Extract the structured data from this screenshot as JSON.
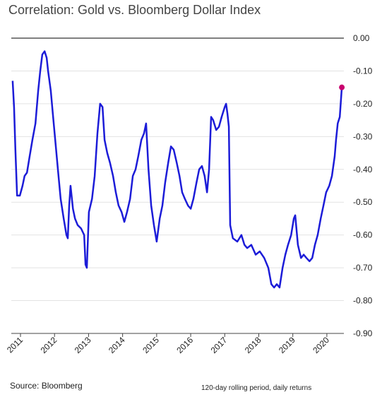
{
  "chart_data": {
    "type": "line",
    "title": "Correlation: Gold vs. Bloomberg Dollar Index",
    "source": "Source: Bloomberg",
    "note": "120-day rolling period,  daily returns",
    "color": "#1c1cd8",
    "grid": true,
    "xlim": [
      2010.73,
      2020.5
    ],
    "xticks": [
      2011,
      2012,
      2013,
      2014,
      2015,
      2016,
      2017,
      2018,
      2019,
      2020
    ],
    "ylim": [
      -0.9,
      0
    ],
    "yticks": [
      {
        "value": 0,
        "label": "0.00"
      },
      {
        "value": -0.1,
        "label": "-0.10"
      },
      {
        "value": -0.2,
        "label": "-0.20"
      },
      {
        "value": -0.3,
        "label": "-0.30"
      },
      {
        "value": -0.4,
        "label": "-0.40"
      },
      {
        "value": -0.5,
        "label": "-0.50"
      },
      {
        "value": -0.6,
        "label": "-0.60"
      },
      {
        "value": -0.7,
        "label": "-0.70"
      },
      {
        "value": -0.8,
        "label": "-0.80"
      },
      {
        "value": -0.9,
        "label": "-0.90"
      }
    ],
    "x": [
      2010.77,
      2010.81,
      2010.85,
      2010.9,
      2010.98,
      2011.06,
      2011.12,
      2011.19,
      2011.27,
      2011.35,
      2011.44,
      2011.52,
      2011.58,
      2011.64,
      2011.71,
      2011.77,
      2011.81,
      2011.89,
      2011.95,
      2012.02,
      2012.1,
      2012.18,
      2012.27,
      2012.35,
      2012.39,
      2012.43,
      2012.47,
      2012.54,
      2012.6,
      2012.68,
      2012.78,
      2012.87,
      2012.91,
      2012.95,
      2013.01,
      2013.1,
      2013.18,
      2013.26,
      2013.34,
      2013.41,
      2013.47,
      2013.55,
      2013.63,
      2013.72,
      2013.8,
      2013.88,
      2013.97,
      2014.05,
      2014.13,
      2014.22,
      2014.3,
      2014.38,
      2014.46,
      2014.55,
      2014.63,
      2014.69,
      2014.76,
      2014.84,
      2014.92,
      2015.0,
      2015.09,
      2015.17,
      2015.25,
      2015.34,
      2015.42,
      2015.5,
      2015.59,
      2015.67,
      2015.75,
      2015.83,
      2015.92,
      2016.0,
      2016.08,
      2016.17,
      2016.25,
      2016.33,
      2016.41,
      2016.48,
      2016.54,
      2016.6,
      2016.66,
      2016.75,
      2016.83,
      2016.91,
      2017.0,
      2017.04,
      2017.08,
      2017.12,
      2017.16,
      2017.24,
      2017.37,
      2017.49,
      2017.58,
      2017.66,
      2017.78,
      2017.91,
      2018.03,
      2018.16,
      2018.28,
      2018.37,
      2018.45,
      2018.53,
      2018.61,
      2018.7,
      2018.78,
      2018.86,
      2018.95,
      2019.03,
      2019.07,
      2019.15,
      2019.24,
      2019.32,
      2019.4,
      2019.49,
      2019.57,
      2019.65,
      2019.73,
      2019.82,
      2019.9,
      2019.98,
      2020.07,
      2020.15,
      2020.23,
      2020.27,
      2020.32,
      2020.38,
      2020.44
    ],
    "values": [
      -0.13,
      -0.21,
      -0.34,
      -0.48,
      -0.48,
      -0.45,
      -0.42,
      -0.41,
      -0.36,
      -0.31,
      -0.26,
      -0.16,
      -0.1,
      -0.05,
      -0.04,
      -0.06,
      -0.1,
      -0.16,
      -0.23,
      -0.31,
      -0.4,
      -0.49,
      -0.55,
      -0.6,
      -0.61,
      -0.51,
      -0.45,
      -0.52,
      -0.55,
      -0.57,
      -0.58,
      -0.6,
      -0.69,
      -0.7,
      -0.53,
      -0.49,
      -0.42,
      -0.29,
      -0.2,
      -0.21,
      -0.31,
      -0.35,
      -0.38,
      -0.42,
      -0.47,
      -0.51,
      -0.53,
      -0.56,
      -0.53,
      -0.49,
      -0.42,
      -0.4,
      -0.36,
      -0.31,
      -0.29,
      -0.26,
      -0.4,
      -0.51,
      -0.57,
      -0.62,
      -0.55,
      -0.51,
      -0.44,
      -0.38,
      -0.33,
      -0.34,
      -0.38,
      -0.42,
      -0.47,
      -0.49,
      -0.51,
      -0.52,
      -0.49,
      -0.44,
      -0.4,
      -0.39,
      -0.42,
      -0.47,
      -0.4,
      -0.24,
      -0.25,
      -0.28,
      -0.27,
      -0.24,
      -0.21,
      -0.2,
      -0.23,
      -0.27,
      -0.57,
      -0.61,
      -0.62,
      -0.6,
      -0.63,
      -0.64,
      -0.63,
      -0.66,
      -0.65,
      -0.67,
      -0.7,
      -0.75,
      -0.76,
      -0.75,
      -0.76,
      -0.7,
      -0.66,
      -0.63,
      -0.6,
      -0.55,
      -0.54,
      -0.63,
      -0.67,
      -0.66,
      -0.67,
      -0.68,
      -0.67,
      -0.63,
      -0.6,
      -0.55,
      -0.51,
      -0.47,
      -0.45,
      -0.42,
      -0.36,
      -0.31,
      -0.26,
      -0.24,
      -0.15
    ],
    "marker": {
      "x": 2020.44,
      "y": -0.15,
      "color": "#c8006e"
    }
  }
}
